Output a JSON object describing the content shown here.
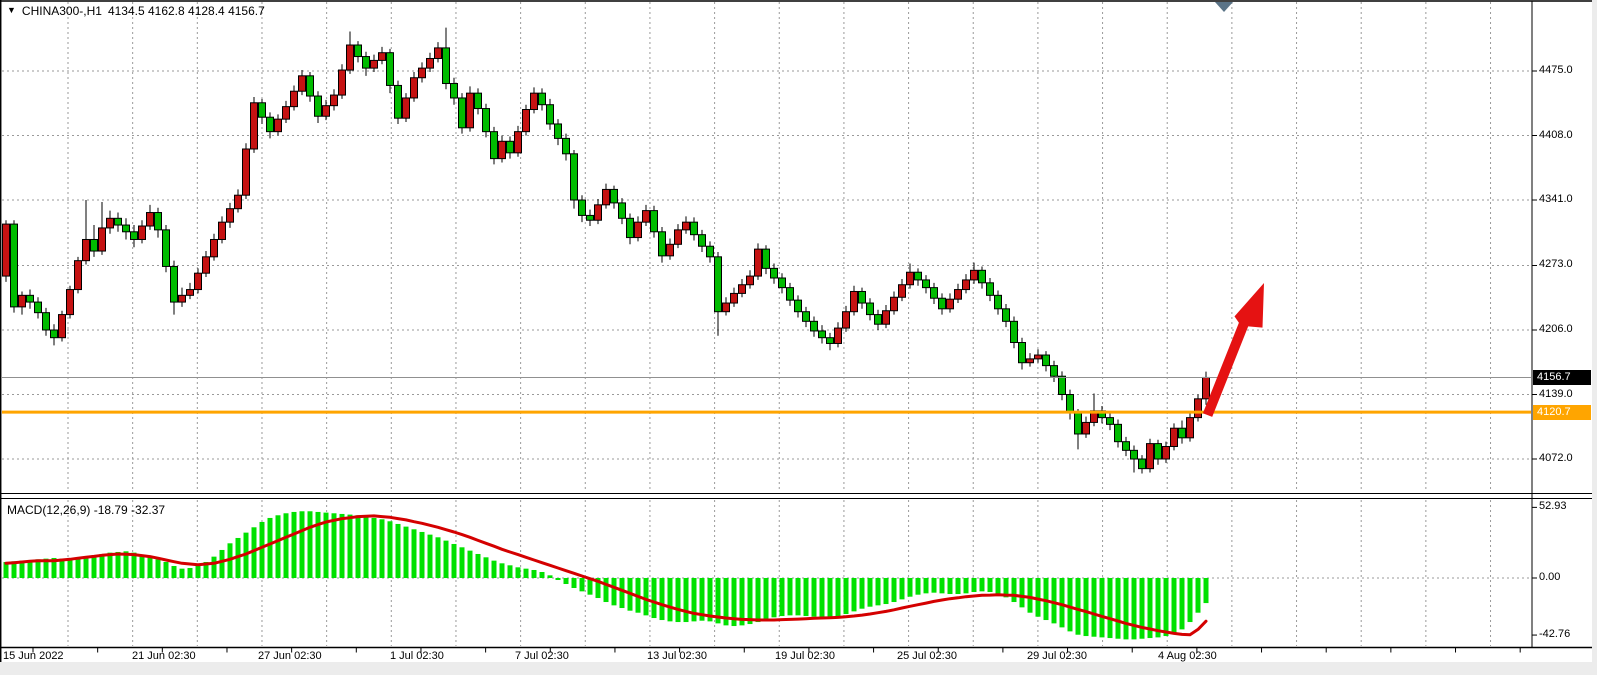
{
  "header": {
    "dropdown_icon": "▼",
    "symbol": "CHINA300-,H1",
    "ohlc_text": "4134.5 4162.8 4128.4 4156.7"
  },
  "indicator": {
    "label": "MACD(12,26,9) -18.79 -32.37"
  },
  "price_axis": {
    "ticks": [
      "4475.0",
      "4408.0",
      "4341.0",
      "4273.0",
      "4206.0",
      "4139.0",
      "4072.0"
    ],
    "current_badge": "4156.7",
    "level_badge": "4120.7"
  },
  "macd_axis": {
    "ticks": [
      "52.93",
      "0.00",
      "-42.76"
    ]
  },
  "time_axis": {
    "labels": [
      "15 Jun 2022",
      "21 Jun 02:30",
      "27 Jun 02:30",
      "1 Jul 02:30",
      "7 Jul 02:30",
      "13 Jul 02:30",
      "19 Jul 02:30",
      "25 Jul 02:30",
      "29 Jul 02:30",
      "4 Aug 02:30"
    ]
  },
  "colors": {
    "bull_candle": "#c51212",
    "bear_candle": "#00bb00",
    "macd_histogram": "#00e100",
    "macd_signal": "#d40000",
    "arrow": "#e51212",
    "level_line": "#ffa500",
    "current_price_line": "#909090",
    "grid": "#9a9a9a",
    "badge_black": "#000000",
    "badge_orange": "#ffa500",
    "shift_marker": "#5a7387"
  },
  "chart_data": {
    "type": "candlestick+macd",
    "symbol": "CHINA300-",
    "timeframe": "H1",
    "title": "CHINA300-,H1 4134.5 4162.8 4128.4 4156.7",
    "last_bar": {
      "open": 4134.5,
      "high": 4162.8,
      "low": 4128.4,
      "close": 4156.7
    },
    "price_ticks": [
      4475.0,
      4408.0,
      4341.0,
      4273.0,
      4206.0,
      4139.0,
      4072.0
    ],
    "x_labels": [
      "15 Jun 2022",
      "21 Jun 02:30",
      "27 Jun 02:30",
      "1 Jul 02:30",
      "7 Jul 02:30",
      "13 Jul 02:30",
      "19 Jul 02:30",
      "25 Jul 02:30",
      "29 Jul 02:30",
      "4 Aug 02:30"
    ],
    "up_color_convention": "red-up-green-down",
    "annotations": {
      "horizontal_level_line": 4120.7,
      "current_price_line": 4156.7,
      "trend_arrow": "large red arrow pointing up-right from the level line near the last bars"
    },
    "bars": [
      [
        4262,
        4320,
        4256,
        4316
      ],
      [
        4316,
        4320,
        4224,
        4230
      ],
      [
        4230,
        4246,
        4222,
        4242
      ],
      [
        4242,
        4248,
        4228,
        4235
      ],
      [
        4235,
        4240,
        4218,
        4224
      ],
      [
        4224,
        4229,
        4200,
        4206
      ],
      [
        4206,
        4212,
        4190,
        4198
      ],
      [
        4198,
        4226,
        4194,
        4222
      ],
      [
        4222,
        4252,
        4218,
        4248
      ],
      [
        4248,
        4282,
        4244,
        4278
      ],
      [
        4278,
        4341,
        4274,
        4300
      ],
      [
        4300,
        4315,
        4282,
        4288
      ],
      [
        4288,
        4339,
        4284,
        4312
      ],
      [
        4312,
        4330,
        4306,
        4322
      ],
      [
        4322,
        4328,
        4308,
        4315
      ],
      [
        4315,
        4322,
        4300,
        4308
      ],
      [
        4308,
        4315,
        4292,
        4300
      ],
      [
        4300,
        4320,
        4296,
        4314
      ],
      [
        4314,
        4336,
        4310,
        4328
      ],
      [
        4328,
        4333,
        4302,
        4310
      ],
      [
        4310,
        4315,
        4266,
        4272
      ],
      [
        4272,
        4278,
        4222,
        4235
      ],
      [
        4235,
        4250,
        4230,
        4242
      ],
      [
        4242,
        4255,
        4238,
        4248
      ],
      [
        4248,
        4270,
        4244,
        4265
      ],
      [
        4265,
        4288,
        4261,
        4282
      ],
      [
        4282,
        4306,
        4278,
        4300
      ],
      [
        4300,
        4324,
        4296,
        4318
      ],
      [
        4318,
        4338,
        4312,
        4332
      ],
      [
        4332,
        4352,
        4328,
        4346
      ],
      [
        4346,
        4400,
        4342,
        4394
      ],
      [
        4394,
        4448,
        4390,
        4442
      ],
      [
        4442,
        4446,
        4420,
        4427
      ],
      [
        4427,
        4432,
        4405,
        4412
      ],
      [
        4412,
        4430,
        4408,
        4425
      ],
      [
        4425,
        4444,
        4421,
        4438
      ],
      [
        4438,
        4460,
        4434,
        4454
      ],
      [
        4454,
        4476,
        4450,
        4470
      ],
      [
        4470,
        4474,
        4443,
        4449
      ],
      [
        4449,
        4454,
        4421,
        4428
      ],
      [
        4428,
        4445,
        4424,
        4439
      ],
      [
        4439,
        4456,
        4434,
        4450
      ],
      [
        4450,
        4482,
        4446,
        4476
      ],
      [
        4476,
        4516,
        4472,
        4502
      ],
      [
        4502,
        4506,
        4484,
        4490
      ],
      [
        4490,
        4495,
        4470,
        4478
      ],
      [
        4478,
        4492,
        4474,
        4486
      ],
      [
        4486,
        4500,
        4482,
        4494
      ],
      [
        4494,
        4498,
        4452,
        4460
      ],
      [
        4460,
        4465,
        4420,
        4426
      ],
      [
        4426,
        4452,
        4422,
        4447
      ],
      [
        4447,
        4474,
        4443,
        4468
      ],
      [
        4468,
        4484,
        4463,
        4478
      ],
      [
        4478,
        4494,
        4474,
        4488
      ],
      [
        4488,
        4505,
        4484,
        4499
      ],
      [
        4499,
        4520,
        4456,
        4462
      ],
      [
        4462,
        4468,
        4440,
        4447
      ],
      [
        4447,
        4452,
        4410,
        4416
      ],
      [
        4416,
        4459,
        4412,
        4452
      ],
      [
        4452,
        4457,
        4430,
        4436
      ],
      [
        4436,
        4441,
        4406,
        4412
      ],
      [
        4412,
        4417,
        4378,
        4384
      ],
      [
        4384,
        4408,
        4380,
        4402
      ],
      [
        4402,
        4407,
        4384,
        4390
      ],
      [
        4390,
        4418,
        4386,
        4412
      ],
      [
        4412,
        4440,
        4408,
        4435
      ],
      [
        4435,
        4458,
        4431,
        4452
      ],
      [
        4452,
        4457,
        4434,
        4440
      ],
      [
        4440,
        4446,
        4414,
        4420
      ],
      [
        4420,
        4425,
        4398,
        4405
      ],
      [
        4405,
        4410,
        4382,
        4389
      ],
      [
        4389,
        4393,
        4332,
        4341
      ],
      [
        4341,
        4346,
        4318,
        4325
      ],
      [
        4325,
        4331,
        4314,
        4320
      ],
      [
        4320,
        4342,
        4316,
        4336
      ],
      [
        4336,
        4358,
        4332,
        4352
      ],
      [
        4352,
        4356,
        4332,
        4338
      ],
      [
        4338,
        4343,
        4316,
        4322
      ],
      [
        4322,
        4327,
        4295,
        4302
      ],
      [
        4302,
        4324,
        4298,
        4318
      ],
      [
        4318,
        4336,
        4314,
        4330
      ],
      [
        4330,
        4335,
        4302,
        4308
      ],
      [
        4308,
        4313,
        4276,
        4283
      ],
      [
        4283,
        4301,
        4279,
        4295
      ],
      [
        4295,
        4316,
        4291,
        4310
      ],
      [
        4310,
        4324,
        4306,
        4318
      ],
      [
        4318,
        4323,
        4299,
        4305
      ],
      [
        4305,
        4310,
        4287,
        4293
      ],
      [
        4293,
        4298,
        4276,
        4282
      ],
      [
        4282,
        4287,
        4200,
        4225
      ],
      [
        4225,
        4240,
        4221,
        4234
      ],
      [
        4234,
        4250,
        4230,
        4244
      ],
      [
        4244,
        4259,
        4240,
        4253
      ],
      [
        4253,
        4268,
        4249,
        4262
      ],
      [
        4262,
        4296,
        4258,
        4290
      ],
      [
        4290,
        4294,
        4264,
        4270
      ],
      [
        4270,
        4275,
        4254,
        4260
      ],
      [
        4260,
        4265,
        4244,
        4250
      ],
      [
        4250,
        4255,
        4231,
        4237
      ],
      [
        4237,
        4242,
        4219,
        4225
      ],
      [
        4225,
        4230,
        4209,
        4215
      ],
      [
        4215,
        4220,
        4199,
        4205
      ],
      [
        4205,
        4211,
        4192,
        4198
      ],
      [
        4198,
        4203,
        4185,
        4192
      ],
      [
        4192,
        4214,
        4188,
        4208
      ],
      [
        4208,
        4231,
        4204,
        4225
      ],
      [
        4225,
        4252,
        4221,
        4246
      ],
      [
        4246,
        4250,
        4228,
        4234
      ],
      [
        4234,
        4239,
        4216,
        4222
      ],
      [
        4222,
        4227,
        4206,
        4212
      ],
      [
        4212,
        4232,
        4208,
        4226
      ],
      [
        4226,
        4246,
        4222,
        4240
      ],
      [
        4240,
        4259,
        4236,
        4253
      ],
      [
        4253,
        4275,
        4249,
        4266
      ],
      [
        4266,
        4270,
        4252,
        4258
      ],
      [
        4258,
        4263,
        4244,
        4250
      ],
      [
        4250,
        4255,
        4233,
        4239
      ],
      [
        4239,
        4244,
        4222,
        4228
      ],
      [
        4228,
        4244,
        4224,
        4238
      ],
      [
        4238,
        4254,
        4234,
        4248
      ],
      [
        4248,
        4264,
        4244,
        4258
      ],
      [
        4258,
        4276,
        4254,
        4268
      ],
      [
        4268,
        4272,
        4249,
        4255
      ],
      [
        4255,
        4260,
        4236,
        4242
      ],
      [
        4242,
        4247,
        4222,
        4228
      ],
      [
        4228,
        4233,
        4209,
        4215
      ],
      [
        4215,
        4220,
        4187,
        4193
      ],
      [
        4193,
        4198,
        4165,
        4172
      ],
      [
        4172,
        4182,
        4168,
        4176
      ],
      [
        4176,
        4186,
        4172,
        4180
      ],
      [
        4180,
        4184,
        4163,
        4169
      ],
      [
        4169,
        4174,
        4152,
        4158
      ],
      [
        4158,
        4163,
        4133,
        4139
      ],
      [
        4139,
        4144,
        4113,
        4120
      ],
      [
        4120,
        4124,
        4082,
        4098
      ],
      [
        4098,
        4116,
        4094,
        4110
      ],
      [
        4110,
        4140,
        4106,
        4122
      ],
      [
        4122,
        4127,
        4109,
        4115
      ],
      [
        4115,
        4120,
        4102,
        4108
      ],
      [
        4108,
        4113,
        4084,
        4090
      ],
      [
        4090,
        4095,
        4075,
        4081
      ],
      [
        4081,
        4086,
        4058,
        4072
      ],
      [
        4072,
        4076,
        4057,
        4062
      ],
      [
        4062,
        4093,
        4058,
        4088
      ],
      [
        4088,
        4092,
        4066,
        4072
      ],
      [
        4072,
        4090,
        4068,
        4085
      ],
      [
        4085,
        4109,
        4081,
        4104
      ],
      [
        4104,
        4112,
        4088,
        4094
      ],
      [
        4094,
        4120,
        4090,
        4115
      ],
      [
        4115,
        4139,
        4111,
        4134.5
      ],
      [
        4134.5,
        4162.8,
        4128.4,
        4156.7
      ]
    ],
    "macd": {
      "params": "12,26,9",
      "last_macd": -18.79,
      "last_signal": -32.37,
      "scale_ticks": [
        52.93,
        0.0,
        -42.76
      ],
      "histogram": [
        12,
        12.5,
        13,
        13.5,
        14,
        14.5,
        15,
        14.5,
        14,
        15,
        16,
        17,
        18,
        19,
        19.5,
        20,
        19,
        17.5,
        16,
        14,
        12,
        9,
        7,
        7.5,
        9,
        12,
        16,
        21,
        26,
        30,
        34,
        38,
        42,
        45,
        47,
        48.5,
        49.5,
        50,
        50,
        49.5,
        49,
        48.5,
        48,
        47.5,
        47,
        46,
        45,
        44,
        42.5,
        40.5,
        38.5,
        36.5,
        34.5,
        32.5,
        30.5,
        28,
        25.5,
        23,
        20.5,
        18,
        15.5,
        13,
        11,
        9.5,
        8,
        7,
        6,
        4.5,
        2,
        -1.5,
        -4.5,
        -7.5,
        -10,
        -12.5,
        -15,
        -18,
        -20.5,
        -22.5,
        -24.5,
        -26,
        -28,
        -30,
        -31.5,
        -32.5,
        -33,
        -33,
        -32.5,
        -32,
        -32.5,
        -34,
        -35.5,
        -36,
        -35.5,
        -34.5,
        -33,
        -31,
        -29.5,
        -28.5,
        -28,
        -28,
        -28.5,
        -29,
        -29.5,
        -29.5,
        -28.5,
        -27,
        -25,
        -23,
        -21.5,
        -20.5,
        -19.5,
        -18,
        -16,
        -14,
        -12.5,
        -11.5,
        -11,
        -11.5,
        -12,
        -12,
        -11.5,
        -10.5,
        -10,
        -10.5,
        -12,
        -14.5,
        -18,
        -22,
        -26,
        -29,
        -31.5,
        -34,
        -37,
        -40,
        -42.5,
        -43.5,
        -44,
        -44.5,
        -45,
        -45.5,
        -46,
        -46,
        -45.5,
        -45,
        -44.5,
        -43.5,
        -42,
        -38.5,
        -33,
        -26,
        -18.79
      ],
      "signal": [
        11,
        11.5,
        12,
        12.5,
        13,
        13,
        13,
        13.5,
        14,
        14.8,
        15.5,
        16.2,
        17,
        17.5,
        18,
        17.8,
        17.5,
        16.8,
        16,
        14.8,
        13.5,
        12.2,
        11,
        10.5,
        10,
        10.5,
        11,
        12.5,
        14,
        16,
        18,
        20.5,
        23,
        25.5,
        28,
        30.5,
        33,
        35.5,
        38,
        40,
        42,
        43.2,
        44.5,
        45.2,
        46,
        46.2,
        46.5,
        46,
        45.5,
        44.5,
        43.5,
        42.2,
        41,
        39.5,
        38,
        36.2,
        34.5,
        32.5,
        30.5,
        28.2,
        26,
        23.8,
        21.5,
        19.5,
        17.5,
        15.5,
        13.5,
        11.5,
        9.5,
        7.5,
        5.5,
        3.5,
        1.5,
        -0.5,
        -2.5,
        -4.8,
        -7,
        -9.2,
        -11.5,
        -13.8,
        -16,
        -18,
        -20,
        -21.8,
        -23.5,
        -25,
        -26.5,
        -27.5,
        -28.5,
        -29.2,
        -30,
        -30.5,
        -31,
        -31.2,
        -31.5,
        -31.5,
        -31.5,
        -31.2,
        -31,
        -30.8,
        -30.5,
        -30.2,
        -30,
        -29.8,
        -29.5,
        -29,
        -28.5,
        -27.8,
        -27,
        -26,
        -25,
        -23.8,
        -22.5,
        -21.2,
        -20,
        -18.8,
        -17.5,
        -16.5,
        -15.5,
        -14.8,
        -14,
        -13.5,
        -13,
        -12.8,
        -12.5,
        -12.8,
        -13,
        -13.8,
        -14.5,
        -15.8,
        -17,
        -18.5,
        -20,
        -21.8,
        -23.5,
        -25.2,
        -27,
        -28.8,
        -30.5,
        -32.2,
        -34,
        -35.5,
        -37,
        -38.2,
        -39.5,
        -40.5,
        -41.5,
        -42.3,
        -42.5,
        -38.5,
        -32.37
      ]
    }
  }
}
